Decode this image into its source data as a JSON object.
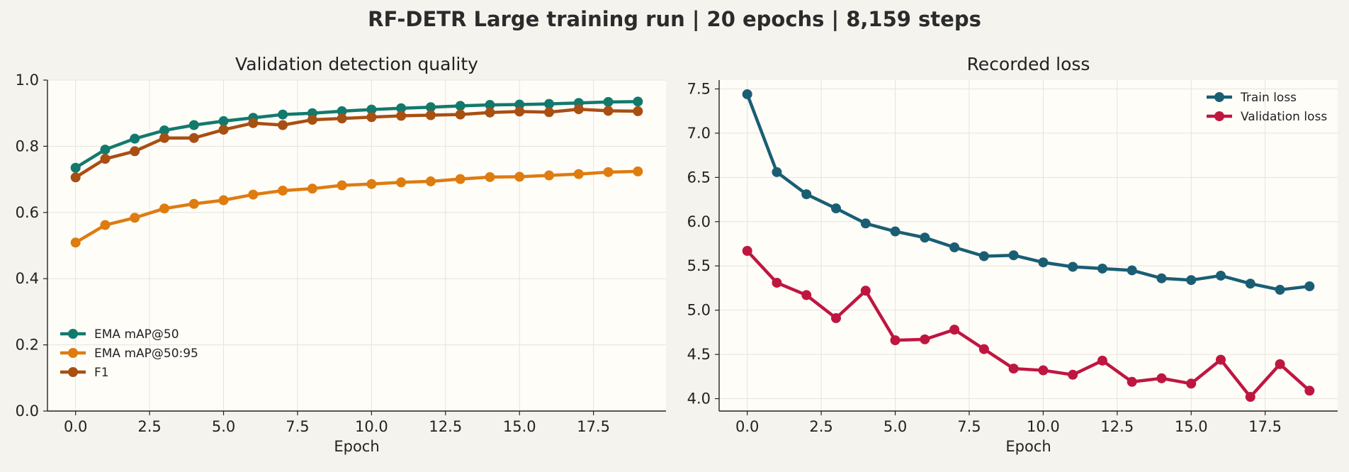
{
  "title": "RF-DETR Large training run | 20 epochs | 8,159 steps",
  "colors": {
    "background": "#f5f3ee",
    "plot_bg": "#fffdf8",
    "grid": "#e6e3dc"
  },
  "chart_data": [
    {
      "type": "line",
      "title": "Validation detection quality",
      "xlabel": "Epoch",
      "ylabel": "",
      "x": [
        0,
        1,
        2,
        3,
        4,
        5,
        6,
        7,
        8,
        9,
        10,
        11,
        12,
        13,
        14,
        15,
        16,
        17,
        18,
        19
      ],
      "xlim": [
        -0.95,
        19.95
      ],
      "ylim": [
        0,
        1.0
      ],
      "xticks": [
        0,
        2.5,
        5,
        7.5,
        10,
        12.5,
        15,
        17.5
      ],
      "xtick_labels": [
        "0.0",
        "2.5",
        "5.0",
        "7.5",
        "10.0",
        "12.5",
        "15.0",
        "17.5"
      ],
      "yticks": [
        0,
        0.2,
        0.4,
        0.6,
        0.8,
        1.0
      ],
      "ytick_labels": [
        "0.0",
        "0.2",
        "0.4",
        "0.6",
        "0.8",
        "1.0"
      ],
      "grid": true,
      "legend": "lower-left",
      "series": [
        {
          "name": "EMA mAP@50",
          "color": "#127a6c",
          "values": [
            0.735,
            0.79,
            0.823,
            0.848,
            0.864,
            0.876,
            0.886,
            0.896,
            0.9,
            0.906,
            0.911,
            0.915,
            0.918,
            0.922,
            0.925,
            0.926,
            0.928,
            0.931,
            0.934,
            0.935
          ]
        },
        {
          "name": "EMA mAP@50:95",
          "color": "#de7c10",
          "values": [
            0.509,
            0.562,
            0.584,
            0.612,
            0.626,
            0.637,
            0.654,
            0.666,
            0.672,
            0.682,
            0.686,
            0.691,
            0.694,
            0.701,
            0.707,
            0.708,
            0.712,
            0.716,
            0.722,
            0.724
          ]
        },
        {
          "name": "F1",
          "color": "#a84f12",
          "values": [
            0.706,
            0.762,
            0.785,
            0.825,
            0.825,
            0.85,
            0.87,
            0.864,
            0.88,
            0.884,
            0.888,
            0.892,
            0.894,
            0.896,
            0.902,
            0.905,
            0.903,
            0.912,
            0.907,
            0.906
          ]
        }
      ]
    },
    {
      "type": "line",
      "title": "Recorded loss",
      "xlabel": "Epoch",
      "ylabel": "",
      "x": [
        0,
        1,
        2,
        3,
        4,
        5,
        6,
        7,
        8,
        9,
        10,
        11,
        12,
        13,
        14,
        15,
        16,
        17,
        18,
        19
      ],
      "xlim": [
        -0.95,
        19.95
      ],
      "ylim": [
        3.86,
        7.6
      ],
      "xticks": [
        0,
        2.5,
        5,
        7.5,
        10,
        12.5,
        15,
        17.5
      ],
      "xtick_labels": [
        "0.0",
        "2.5",
        "5.0",
        "7.5",
        "10.0",
        "12.5",
        "15.0",
        "17.5"
      ],
      "yticks": [
        4.0,
        4.5,
        5.0,
        5.5,
        6.0,
        6.5,
        7.0,
        7.5
      ],
      "ytick_labels": [
        "4.0",
        "4.5",
        "5.0",
        "5.5",
        "6.0",
        "6.5",
        "7.0",
        "7.5"
      ],
      "grid": true,
      "legend": "upper-right",
      "series": [
        {
          "name": "Train loss",
          "color": "#1a5e74",
          "values": [
            7.44,
            6.56,
            6.31,
            6.15,
            5.98,
            5.89,
            5.82,
            5.71,
            5.61,
            5.62,
            5.54,
            5.49,
            5.47,
            5.45,
            5.36,
            5.34,
            5.39,
            5.3,
            5.23,
            5.27
          ]
        },
        {
          "name": "Validation loss",
          "color": "#bf1640",
          "values": [
            5.67,
            5.31,
            5.17,
            4.91,
            5.22,
            4.66,
            4.67,
            4.78,
            4.56,
            4.34,
            4.32,
            4.27,
            4.43,
            4.19,
            4.23,
            4.17,
            4.44,
            4.02,
            4.39,
            4.09
          ]
        }
      ]
    }
  ]
}
